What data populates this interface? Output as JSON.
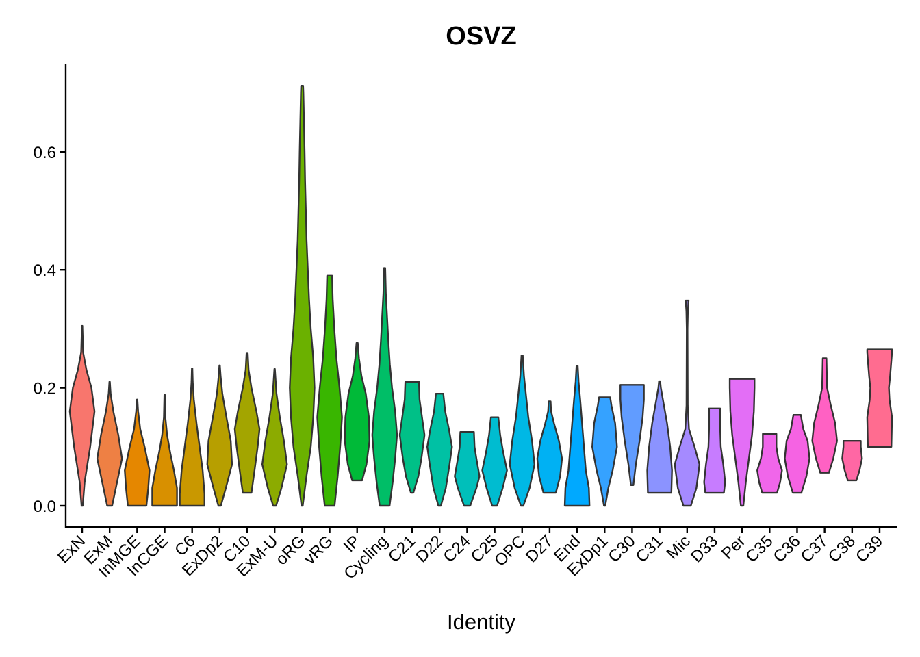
{
  "chart_data": {
    "type": "violin",
    "title": "OSVZ",
    "xlabel": "Identity",
    "ylabel": "",
    "ylim": [
      -0.035,
      0.75
    ],
    "yticks": [
      0.0,
      0.2,
      0.4,
      0.6
    ],
    "ytick_labels": [
      "0.0",
      "0.2",
      "0.4",
      "0.6"
    ],
    "categories": [
      "ExN",
      "ExM",
      "InMGE",
      "InCGE",
      "C6",
      "ExDp2",
      "C10",
      "ExM-U",
      "oRG",
      "vRG",
      "IP",
      "Cycling",
      "C21",
      "D22",
      "C24",
      "C25",
      "OPC",
      "D27",
      "End",
      "ExDp1",
      "C30",
      "C31",
      "Mic",
      "D33",
      "Per",
      "C35",
      "C36",
      "C37",
      "C38",
      "C39"
    ],
    "colors": [
      "#F8766D",
      "#EE8044",
      "#E58700",
      "#D89000",
      "#C99800",
      "#B79F00",
      "#A3A500",
      "#8CAB00",
      "#6BB100",
      "#39B600",
      "#00BA38",
      "#00BE67",
      "#00C087",
      "#00C1A4",
      "#00BFBA",
      "#00BCD0",
      "#00B8E5",
      "#00B1F3",
      "#00A9FF",
      "#35A2FF",
      "#619CFF",
      "#8B93FF",
      "#A58AFF",
      "#C77CFF",
      "#E36EF6",
      "#F066EA",
      "#F563E3",
      "#FF61C3",
      "#FF67A4",
      "#FF6C90"
    ],
    "series": [
      {
        "name": "ExN",
        "profile": [
          [
            0.0,
            0.05
          ],
          [
            0.04,
            0.2
          ],
          [
            0.1,
            0.65
          ],
          [
            0.16,
            1.0
          ],
          [
            0.2,
            0.75
          ],
          [
            0.23,
            0.35
          ],
          [
            0.26,
            0.08
          ],
          [
            0.305,
            0.02
          ]
        ]
      },
      {
        "name": "ExM",
        "profile": [
          [
            0.0,
            0.2
          ],
          [
            0.04,
            0.6
          ],
          [
            0.08,
            1.0
          ],
          [
            0.12,
            0.7
          ],
          [
            0.16,
            0.3
          ],
          [
            0.19,
            0.08
          ],
          [
            0.21,
            0.02
          ]
        ]
      },
      {
        "name": "InMGE",
        "profile": [
          [
            0.0,
            0.75
          ],
          [
            0.03,
            0.9
          ],
          [
            0.06,
            1.0
          ],
          [
            0.1,
            0.6
          ],
          [
            0.13,
            0.25
          ],
          [
            0.16,
            0.08
          ],
          [
            0.18,
            0.02
          ]
        ]
      },
      {
        "name": "InCGE",
        "profile": [
          [
            0.0,
            1.0
          ],
          [
            0.03,
            1.0
          ],
          [
            0.06,
            0.75
          ],
          [
            0.09,
            0.45
          ],
          [
            0.12,
            0.2
          ],
          [
            0.15,
            0.06
          ],
          [
            0.188,
            0.02
          ]
        ]
      },
      {
        "name": "C6",
        "profile": [
          [
            0.0,
            1.0
          ],
          [
            0.02,
            1.0
          ],
          [
            0.06,
            0.85
          ],
          [
            0.1,
            0.6
          ],
          [
            0.14,
            0.35
          ],
          [
            0.18,
            0.14
          ],
          [
            0.21,
            0.05
          ],
          [
            0.233,
            0.02
          ]
        ]
      },
      {
        "name": "ExDp2",
        "profile": [
          [
            0.0,
            0.1
          ],
          [
            0.03,
            0.5
          ],
          [
            0.07,
            1.0
          ],
          [
            0.11,
            0.9
          ],
          [
            0.15,
            0.55
          ],
          [
            0.19,
            0.22
          ],
          [
            0.22,
            0.08
          ],
          [
            0.238,
            0.02
          ]
        ]
      },
      {
        "name": "C10",
        "profile": [
          [
            0.022,
            0.35
          ],
          [
            0.06,
            0.6
          ],
          [
            0.1,
            0.85
          ],
          [
            0.13,
            1.0
          ],
          [
            0.16,
            0.75
          ],
          [
            0.2,
            0.35
          ],
          [
            0.23,
            0.12
          ],
          [
            0.258,
            0.05
          ]
        ]
      },
      {
        "name": "ExM-U",
        "profile": [
          [
            0.0,
            0.12
          ],
          [
            0.03,
            0.55
          ],
          [
            0.07,
            1.0
          ],
          [
            0.11,
            0.75
          ],
          [
            0.15,
            0.42
          ],
          [
            0.19,
            0.15
          ],
          [
            0.232,
            0.02
          ]
        ]
      },
      {
        "name": "oRG",
        "profile": [
          [
            0.0,
            0.05
          ],
          [
            0.05,
            0.35
          ],
          [
            0.1,
            0.7
          ],
          [
            0.15,
            0.9
          ],
          [
            0.2,
            1.0
          ],
          [
            0.25,
            0.9
          ],
          [
            0.3,
            0.7
          ],
          [
            0.35,
            0.56
          ],
          [
            0.4,
            0.46
          ],
          [
            0.45,
            0.36
          ],
          [
            0.5,
            0.3
          ],
          [
            0.55,
            0.24
          ],
          [
            0.6,
            0.2
          ],
          [
            0.65,
            0.15
          ],
          [
            0.7,
            0.1
          ],
          [
            0.712,
            0.08
          ]
        ]
      },
      {
        "name": "vRG",
        "profile": [
          [
            0.0,
            0.4
          ],
          [
            0.05,
            0.65
          ],
          [
            0.1,
            0.85
          ],
          [
            0.15,
            1.0
          ],
          [
            0.2,
            0.8
          ],
          [
            0.25,
            0.55
          ],
          [
            0.3,
            0.38
          ],
          [
            0.35,
            0.25
          ],
          [
            0.39,
            0.2
          ]
        ]
      },
      {
        "name": "IP",
        "profile": [
          [
            0.043,
            0.4
          ],
          [
            0.07,
            0.75
          ],
          [
            0.11,
            1.0
          ],
          [
            0.15,
            0.95
          ],
          [
            0.19,
            0.7
          ],
          [
            0.22,
            0.35
          ],
          [
            0.25,
            0.15
          ],
          [
            0.276,
            0.05
          ]
        ]
      },
      {
        "name": "Cycling",
        "profile": [
          [
            0.0,
            0.4
          ],
          [
            0.04,
            0.65
          ],
          [
            0.08,
            0.85
          ],
          [
            0.12,
            1.0
          ],
          [
            0.16,
            0.85
          ],
          [
            0.2,
            0.6
          ],
          [
            0.24,
            0.42
          ],
          [
            0.28,
            0.3
          ],
          [
            0.32,
            0.2
          ],
          [
            0.36,
            0.1
          ],
          [
            0.403,
            0.05
          ]
        ]
      },
      {
        "name": "C21",
        "profile": [
          [
            0.022,
            0.1
          ],
          [
            0.05,
            0.5
          ],
          [
            0.08,
            0.75
          ],
          [
            0.12,
            1.0
          ],
          [
            0.15,
            0.8
          ],
          [
            0.18,
            0.6
          ],
          [
            0.21,
            0.55
          ]
        ]
      },
      {
        "name": "D22",
        "profile": [
          [
            0.0,
            0.1
          ],
          [
            0.03,
            0.5
          ],
          [
            0.07,
            0.8
          ],
          [
            0.1,
            1.0
          ],
          [
            0.13,
            0.75
          ],
          [
            0.16,
            0.45
          ],
          [
            0.19,
            0.3
          ]
        ]
      },
      {
        "name": "C24",
        "profile": [
          [
            0.0,
            0.25
          ],
          [
            0.03,
            0.75
          ],
          [
            0.05,
            1.0
          ],
          [
            0.08,
            0.75
          ],
          [
            0.1,
            0.6
          ],
          [
            0.125,
            0.55
          ]
        ]
      },
      {
        "name": "C25",
        "profile": [
          [
            0.0,
            0.2
          ],
          [
            0.03,
            0.65
          ],
          [
            0.06,
            1.0
          ],
          [
            0.09,
            0.7
          ],
          [
            0.12,
            0.45
          ],
          [
            0.15,
            0.3
          ]
        ]
      },
      {
        "name": "OPC",
        "profile": [
          [
            0.0,
            0.1
          ],
          [
            0.03,
            0.6
          ],
          [
            0.07,
            1.0
          ],
          [
            0.11,
            0.8
          ],
          [
            0.15,
            0.5
          ],
          [
            0.19,
            0.3
          ],
          [
            0.22,
            0.15
          ],
          [
            0.255,
            0.05
          ]
        ]
      },
      {
        "name": "D27",
        "profile": [
          [
            0.022,
            0.5
          ],
          [
            0.05,
            0.85
          ],
          [
            0.08,
            1.0
          ],
          [
            0.11,
            0.75
          ],
          [
            0.14,
            0.35
          ],
          [
            0.16,
            0.12
          ],
          [
            0.177,
            0.08
          ]
        ]
      },
      {
        "name": "End",
        "profile": [
          [
            0.0,
            1.0
          ],
          [
            0.03,
            0.95
          ],
          [
            0.06,
            0.7
          ],
          [
            0.1,
            0.55
          ],
          [
            0.14,
            0.4
          ],
          [
            0.18,
            0.25
          ],
          [
            0.21,
            0.12
          ],
          [
            0.237,
            0.05
          ]
        ]
      },
      {
        "name": "ExDp1",
        "profile": [
          [
            0.0,
            0.05
          ],
          [
            0.03,
            0.3
          ],
          [
            0.06,
            0.65
          ],
          [
            0.1,
            1.0
          ],
          [
            0.14,
            0.85
          ],
          [
            0.17,
            0.55
          ],
          [
            0.184,
            0.45
          ]
        ]
      },
      {
        "name": "C30",
        "profile": [
          [
            0.035,
            0.1
          ],
          [
            0.07,
            0.3
          ],
          [
            0.11,
            0.6
          ],
          [
            0.15,
            0.85
          ],
          [
            0.18,
            0.95
          ],
          [
            0.2,
            0.95
          ],
          [
            0.205,
            0.95
          ]
        ]
      },
      {
        "name": "C31",
        "profile": [
          [
            0.022,
            0.95
          ],
          [
            0.06,
            1.0
          ],
          [
            0.1,
            0.85
          ],
          [
            0.14,
            0.6
          ],
          [
            0.17,
            0.35
          ],
          [
            0.2,
            0.1
          ],
          [
            0.211,
            0.05
          ]
        ]
      },
      {
        "name": "Mic",
        "profile": [
          [
            0.0,
            0.3
          ],
          [
            0.03,
            0.75
          ],
          [
            0.07,
            1.0
          ],
          [
            0.1,
            0.6
          ],
          [
            0.13,
            0.15
          ],
          [
            0.17,
            0.05
          ],
          [
            0.3,
            0.03
          ],
          [
            0.33,
            0.06
          ],
          [
            0.348,
            0.12
          ]
        ]
      },
      {
        "name": "D33",
        "profile": [
          [
            0.022,
            0.75
          ],
          [
            0.04,
            0.85
          ],
          [
            0.07,
            0.7
          ],
          [
            0.1,
            0.5
          ],
          [
            0.13,
            0.45
          ],
          [
            0.16,
            0.45
          ],
          [
            0.165,
            0.45
          ]
        ]
      },
      {
        "name": "Per",
        "profile": [
          [
            0.0,
            0.1
          ],
          [
            0.04,
            0.3
          ],
          [
            0.08,
            0.55
          ],
          [
            0.12,
            0.8
          ],
          [
            0.16,
            0.95
          ],
          [
            0.2,
            1.0
          ],
          [
            0.215,
            1.0
          ]
        ]
      },
      {
        "name": "C35",
        "profile": [
          [
            0.022,
            0.6
          ],
          [
            0.04,
            0.85
          ],
          [
            0.06,
            1.0
          ],
          [
            0.08,
            0.7
          ],
          [
            0.1,
            0.55
          ],
          [
            0.122,
            0.55
          ]
        ]
      },
      {
        "name": "C36",
        "profile": [
          [
            0.022,
            0.35
          ],
          [
            0.05,
            0.75
          ],
          [
            0.08,
            1.0
          ],
          [
            0.11,
            0.85
          ],
          [
            0.13,
            0.5
          ],
          [
            0.154,
            0.3
          ]
        ]
      },
      {
        "name": "C37",
        "profile": [
          [
            0.056,
            0.35
          ],
          [
            0.08,
            0.7
          ],
          [
            0.11,
            1.0
          ],
          [
            0.14,
            0.85
          ],
          [
            0.17,
            0.5
          ],
          [
            0.2,
            0.2
          ],
          [
            0.25,
            0.15
          ]
        ]
      },
      {
        "name": "C38",
        "profile": [
          [
            0.043,
            0.35
          ],
          [
            0.06,
            0.6
          ],
          [
            0.08,
            0.8
          ],
          [
            0.1,
            0.7
          ],
          [
            0.11,
            0.7
          ]
        ]
      },
      {
        "name": "C39",
        "profile": [
          [
            0.1,
            0.95
          ],
          [
            0.15,
            1.0
          ],
          [
            0.18,
            0.8
          ],
          [
            0.2,
            0.75
          ],
          [
            0.22,
            0.85
          ],
          [
            0.26,
            1.0
          ],
          [
            0.265,
            1.0
          ]
        ]
      }
    ]
  }
}
